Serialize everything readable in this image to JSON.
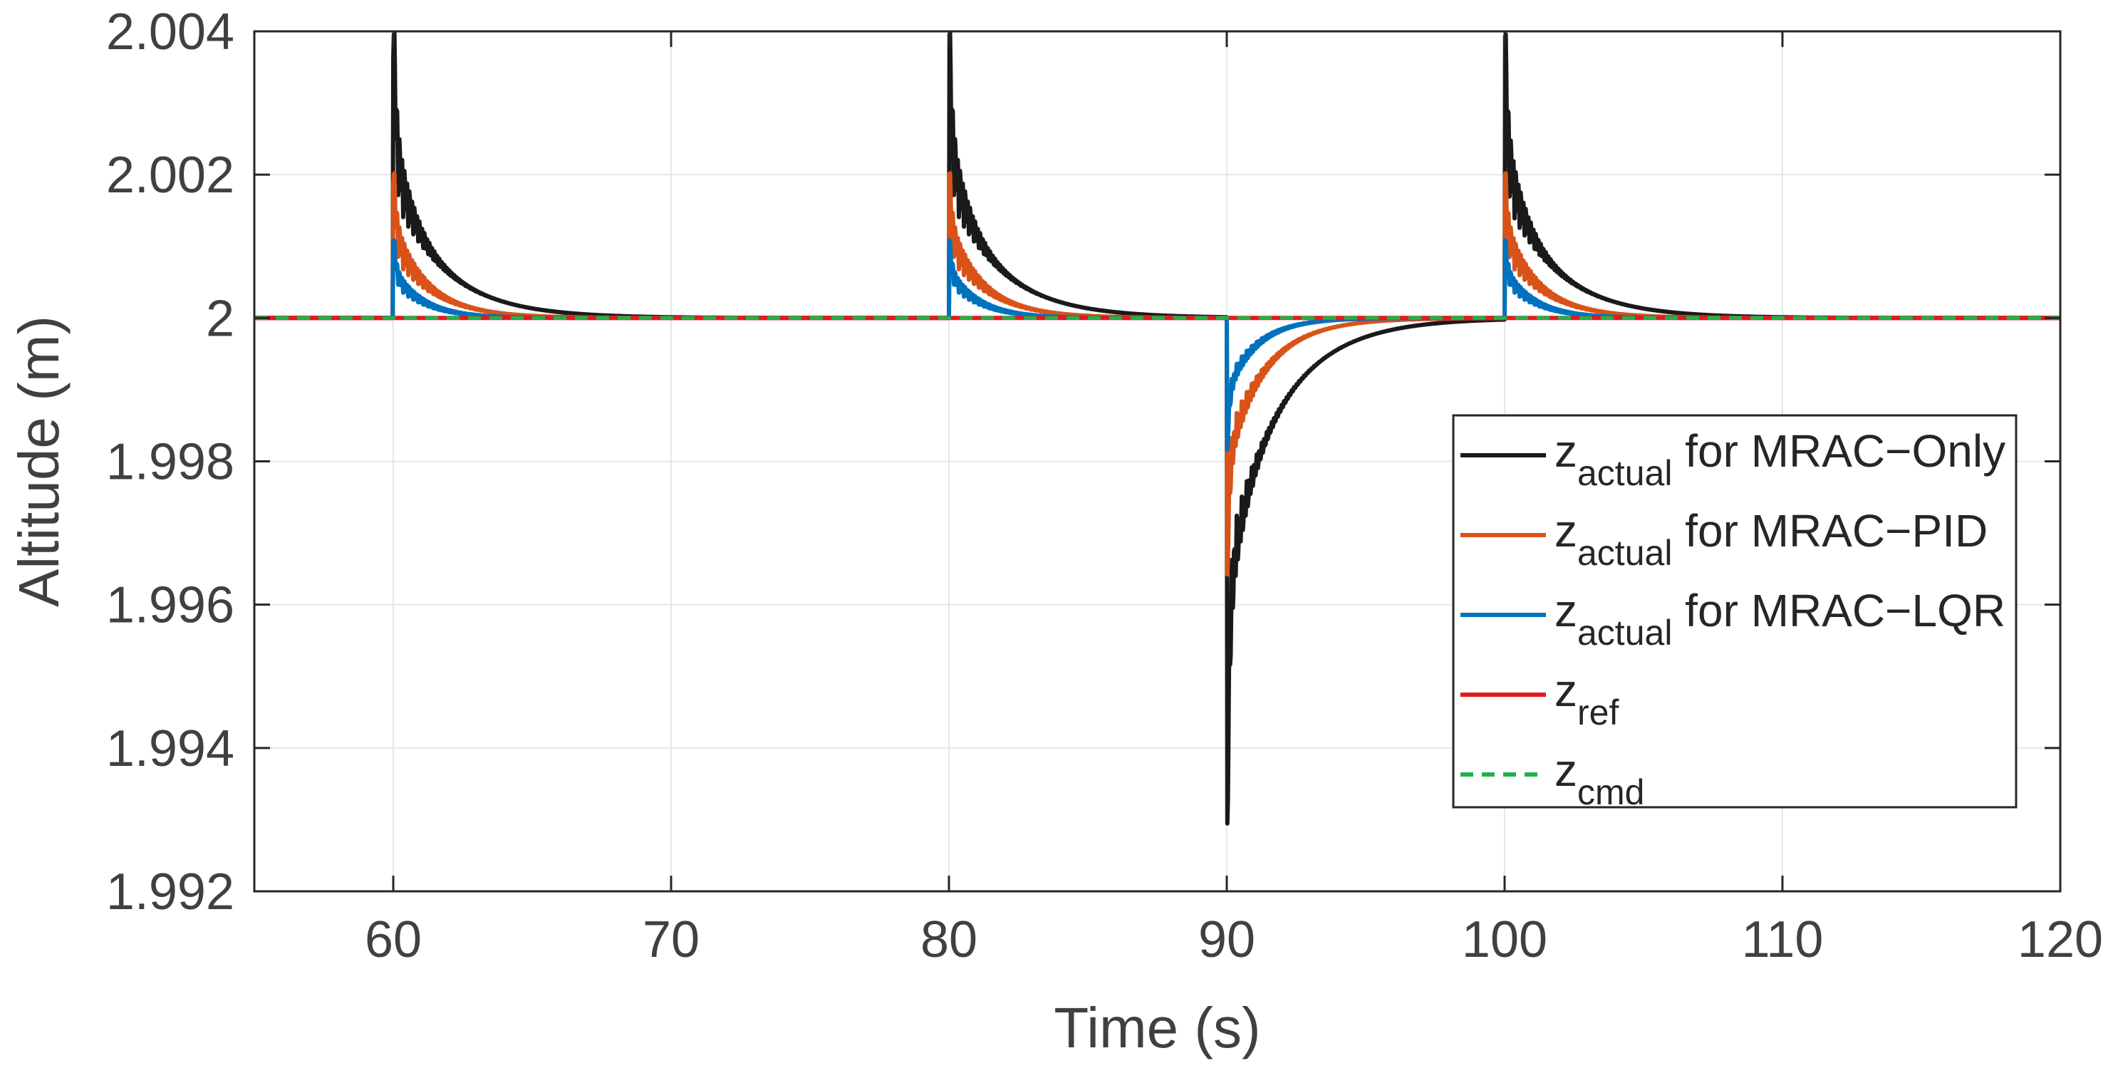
{
  "chart_data": {
    "type": "line",
    "title": "",
    "xlabel": "Time (s)",
    "ylabel": "Altitude (m)",
    "xlim": [
      55,
      120
    ],
    "ylim": [
      1.992,
      2.004
    ],
    "grid": true,
    "xticks": [
      60,
      70,
      80,
      90,
      100,
      110,
      120
    ],
    "xtick_labels": [
      "60",
      "70",
      "80",
      "90",
      "100",
      "110",
      "120"
    ],
    "yticks": [
      1.992,
      1.994,
      1.996,
      1.998,
      2.0,
      2.002,
      2.004
    ],
    "ytick_labels": [
      "1.992",
      "1.994",
      "1.996",
      "1.998",
      "2",
      "2.002",
      "2.004"
    ],
    "legend_position": "right",
    "baseline": 2.0,
    "disturbances": [
      {
        "t": 60,
        "direction": "up"
      },
      {
        "t": 80,
        "direction": "up"
      },
      {
        "t": 90,
        "direction": "down"
      },
      {
        "t": 100,
        "direction": "up"
      }
    ],
    "series": [
      {
        "name": "MRAC-Only",
        "legend_main": "z",
        "legend_sub": "actual",
        "legend_suffix": " for MRAC−Only",
        "color": "#1a1a1a",
        "dash": "solid",
        "peak_up": 2.00362,
        "peak_down": 1.99282,
        "tau": 2.0,
        "osc_amp": 0.0014,
        "osc_decay": 0.7
      },
      {
        "name": "MRAC-PID",
        "legend_main": "z",
        "legend_sub": "actual",
        "legend_suffix": " for MRAC−PID",
        "color": "#d95319",
        "dash": "solid",
        "peak_up": 2.00185,
        "peak_down": 1.99635,
        "tau": 1.5,
        "osc_amp": 0.0007,
        "osc_decay": 0.85
      },
      {
        "name": "MRAC-LQR",
        "legend_main": "z",
        "legend_sub": "actual",
        "legend_suffix": " for MRAC−LQR",
        "color": "#0072bd",
        "dash": "solid",
        "peak_up": 2.00105,
        "peak_down": 1.99808,
        "tau": 1.1,
        "osc_amp": 0.0003,
        "osc_decay": 1.0
      },
      {
        "name": "ref",
        "legend_main": "z",
        "legend_sub": "ref",
        "legend_suffix": "",
        "color": "#e31a1c",
        "dash": "solid",
        "constant": 2.0
      },
      {
        "name": "cmd",
        "legend_main": "z",
        "legend_sub": "cmd",
        "legend_suffix": "",
        "color": "#22b14c",
        "dash": "dashed",
        "constant": 2.0
      }
    ]
  }
}
